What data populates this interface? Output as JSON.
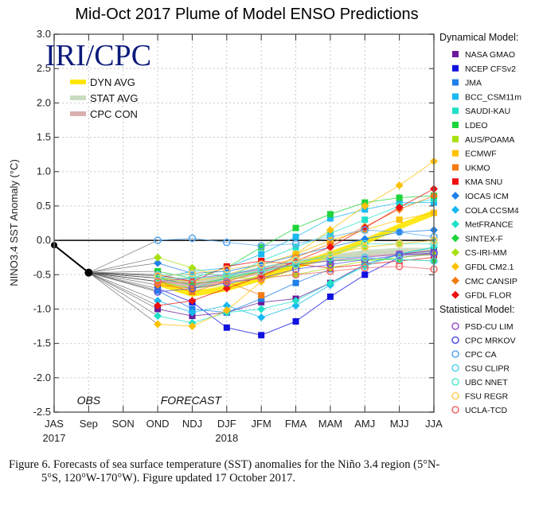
{
  "chart_data": {
    "type": "line",
    "title": "Mid-Oct 2017 Plume of Model ENSO Predictions",
    "xlabel": "",
    "ylabel": "NINO3.4 SST Anomaly (°C)",
    "ylim": [
      -2.5,
      3.0
    ],
    "yticks": [
      "3.0",
      "2.5",
      "2.0",
      "1.5",
      "1.0",
      "0.5",
      "0.0",
      "-0.5",
      "-1.0",
      "-1.5",
      "-2.0",
      "-2.5"
    ],
    "ytick_values": [
      3.0,
      2.5,
      2.0,
      1.5,
      1.0,
      0.5,
      0.0,
      -0.5,
      -1.0,
      -1.5,
      -2.0,
      -2.5
    ],
    "categories": [
      "JAS",
      "Sep",
      "SON",
      "OND",
      "NDJ",
      "DJF",
      "JFM",
      "FMA",
      "MAM",
      "AMJ",
      "MJJ",
      "JJA"
    ],
    "year_labels": [
      {
        "label": "2017",
        "at": "JAS"
      },
      {
        "label": "2018",
        "at": "DJF"
      }
    ],
    "annotations": [
      {
        "text": "OBS",
        "at": "Sep"
      },
      {
        "text": "FORECAST",
        "at": "DJF"
      }
    ],
    "grid": true,
    "logo": "IRI/CPC",
    "observed": {
      "name": "OBS",
      "color": "#000000",
      "x": [
        "JAS",
        "Sep"
      ],
      "values": [
        -0.07,
        -0.47
      ]
    },
    "averages": [
      {
        "name": "DYN AVG",
        "color": "#ffe600",
        "values": [
          -0.62,
          -0.78,
          -0.7,
          -0.55,
          -0.38,
          -0.2,
          -0.02,
          0.2,
          0.4
        ]
      },
      {
        "name": "STAT AVG",
        "color": "#c9dcc0",
        "values": [
          -0.55,
          -0.6,
          -0.55,
          -0.42,
          -0.33,
          -0.25,
          -0.18,
          -0.15,
          -0.15
        ]
      },
      {
        "name": "CPC CON",
        "color": "#d9b0b0",
        "values": [
          -0.58,
          -0.65,
          -0.55,
          -0.45,
          -0.35,
          -0.25,
          -0.2,
          -0.18,
          -0.18
        ]
      }
    ],
    "forecast_x": [
      "OND",
      "NDJ",
      "DJF",
      "JFM",
      "FMA",
      "MAM",
      "AMJ",
      "MJJ",
      "JJA"
    ],
    "dynamical_models": [
      {
        "name": "NASA GMAO",
        "color": "#6a1a9a",
        "marker": "square",
        "values": [
          -1.0,
          -1.1,
          -1.05,
          -0.9,
          -0.85,
          -0.62,
          -0.35,
          -0.2,
          -0.15
        ]
      },
      {
        "name": "NCEP CFSv2",
        "color": "#1010e0",
        "marker": "square",
        "values": [
          -0.7,
          -0.9,
          -1.27,
          -1.38,
          -1.18,
          -0.82,
          -0.5,
          -0.25,
          -0.2
        ]
      },
      {
        "name": "JMA",
        "color": "#1e7fe8",
        "marker": "square",
        "values": [
          -0.73,
          -1.0,
          -1.05,
          -0.85,
          -0.62,
          -0.42,
          null,
          null,
          null
        ]
      },
      {
        "name": "BCC_CSM11m",
        "color": "#1ab8f0",
        "marker": "square",
        "values": [
          -0.55,
          -0.45,
          -0.4,
          -0.2,
          0.05,
          0.32,
          0.45,
          0.55,
          0.55
        ]
      },
      {
        "name": "SAUDI-KAU",
        "color": "#20e0c8",
        "marker": "square",
        "values": [
          -0.6,
          -0.7,
          -0.55,
          -0.3,
          -0.1,
          0.1,
          0.3,
          0.5,
          0.6
        ]
      },
      {
        "name": "LDEO",
        "color": "#1ed43a",
        "marker": "square",
        "values": [
          -0.45,
          -0.55,
          -0.4,
          -0.1,
          0.18,
          0.38,
          0.55,
          0.62,
          0.65
        ]
      },
      {
        "name": "AUS/POAMA",
        "color": "#a8e010",
        "marker": "square",
        "values": [
          -0.6,
          -0.7,
          -0.65,
          -0.5,
          -0.35,
          -0.2,
          -0.1,
          -0.05,
          0.0
        ]
      },
      {
        "name": "ECMWF",
        "color": "#ffc000",
        "marker": "square",
        "values": [
          -0.55,
          -0.6,
          -0.5,
          -0.35,
          -0.2,
          0.0,
          0.15,
          0.3,
          0.4
        ]
      },
      {
        "name": "UKMO",
        "color": "#f57b10",
        "marker": "square",
        "values": [
          -0.6,
          -0.75,
          -0.6,
          -0.8,
          null,
          null,
          null,
          null,
          null
        ]
      },
      {
        "name": "KMA SNU",
        "color": "#ee1010",
        "marker": "square",
        "values": [
          -0.5,
          -0.6,
          -0.38,
          -0.3,
          -0.35,
          -0.4,
          -0.35,
          -0.3,
          -0.25
        ]
      },
      {
        "name": "IOCAS ICM",
        "color": "#1e7fe8",
        "marker": "diamond",
        "values": [
          -0.33,
          -0.48,
          -0.45,
          -0.35,
          -0.22,
          -0.1,
          0.02,
          0.12,
          0.15
        ]
      },
      {
        "name": "COLA CCSM4",
        "color": "#1ab8f0",
        "marker": "diamond",
        "values": [
          -0.88,
          -1.05,
          -0.95,
          -1.12,
          -0.95,
          -0.65,
          -0.35,
          -0.2,
          -0.1
        ]
      },
      {
        "name": "MetFRANCE",
        "color": "#20e0c8",
        "marker": "diamond",
        "values": [
          -1.1,
          -1.2,
          -1.05,
          -1.0,
          -0.88,
          -0.62,
          -0.38,
          -0.2,
          -0.1
        ]
      },
      {
        "name": "SINTEX-F",
        "color": "#1ed43a",
        "marker": "diamond",
        "values": [
          -0.55,
          -0.65,
          -0.55,
          -0.45,
          -0.35,
          -0.3,
          -0.28,
          -0.28,
          -0.3
        ]
      },
      {
        "name": "CS-IRI-MM",
        "color": "#a8e010",
        "marker": "diamond",
        "values": [
          -0.25,
          -0.4,
          -0.55,
          -0.55,
          -0.5,
          -0.4,
          -0.3,
          -0.25,
          -0.2
        ]
      },
      {
        "name": "GFDL CM2.1",
        "color": "#ffc000",
        "marker": "diamond",
        "values": [
          -1.22,
          -1.25,
          -1.02,
          -0.6,
          -0.2,
          0.15,
          0.5,
          0.8,
          1.15
        ]
      },
      {
        "name": "CMC CANSIP",
        "color": "#f57b10",
        "marker": "diamond",
        "values": [
          -0.65,
          -0.7,
          -0.6,
          -0.45,
          -0.25,
          -0.05,
          0.2,
          0.45,
          0.65
        ]
      },
      {
        "name": "GFDL FLOR",
        "color": "#ee1010",
        "marker": "diamond",
        "values": [
          -0.95,
          -0.88,
          -0.7,
          -0.52,
          -0.3,
          -0.1,
          0.18,
          0.48,
          0.75
        ]
      }
    ],
    "statistical_models": [
      {
        "name": "PSD-CU LIM",
        "color": "#9b59c8",
        "marker": "circle",
        "values": [
          -0.6,
          -0.55,
          -0.5,
          -0.42,
          -0.35,
          -0.3,
          -0.25,
          -0.2,
          -0.2
        ]
      },
      {
        "name": "CPC MRKOV",
        "color": "#5555e0",
        "marker": "circle",
        "values": [
          -0.75,
          -0.7,
          -0.62,
          -0.55,
          -0.42,
          -0.35,
          -0.28,
          -0.22,
          -0.18
        ]
      },
      {
        "name": "CPC CA",
        "color": "#5aa8f0",
        "marker": "circle",
        "values": [
          0.0,
          0.03,
          -0.03,
          -0.08,
          -0.05,
          0.05,
          0.15,
          0.12,
          0.05
        ]
      },
      {
        "name": "CSU CLIPR",
        "color": "#5ad0f0",
        "marker": "circle",
        "values": [
          -0.5,
          -0.5,
          -0.5,
          -0.4,
          -0.3,
          -0.25,
          -0.25,
          -0.28,
          -0.3
        ]
      },
      {
        "name": "UBC NNET",
        "color": "#5ae8d0",
        "marker": "circle",
        "values": [
          -0.55,
          -0.55,
          -0.52,
          -0.45,
          -0.35,
          -0.2,
          -0.05,
          -0.05,
          -0.05
        ]
      },
      {
        "name": "FSU REGR",
        "color": "#ffd060",
        "marker": "circle",
        "values": [
          -0.52,
          -0.48,
          -0.42,
          -0.35,
          -0.28,
          -0.2,
          -0.1,
          -0.05,
          0.0
        ]
      },
      {
        "name": "UCLA-TCD",
        "color": "#f06a6a",
        "marker": "circle",
        "values": [
          -0.6,
          -0.62,
          -0.6,
          -0.55,
          -0.5,
          -0.45,
          -0.4,
          -0.38,
          -0.42
        ]
      }
    ],
    "legend": {
      "placement": "right",
      "dynamical_header": "Dynamical Model:",
      "statistical_header": "Statistical Model:",
      "avg_placement": "top-left"
    }
  },
  "caption": {
    "line1": "Figure 6. Forecasts of sea surface temperature (SST) anomalies for the Niño 3.4 region (5°N-",
    "line2": "5°S, 120°W-170°W). Figure updated 17 October 2017."
  }
}
